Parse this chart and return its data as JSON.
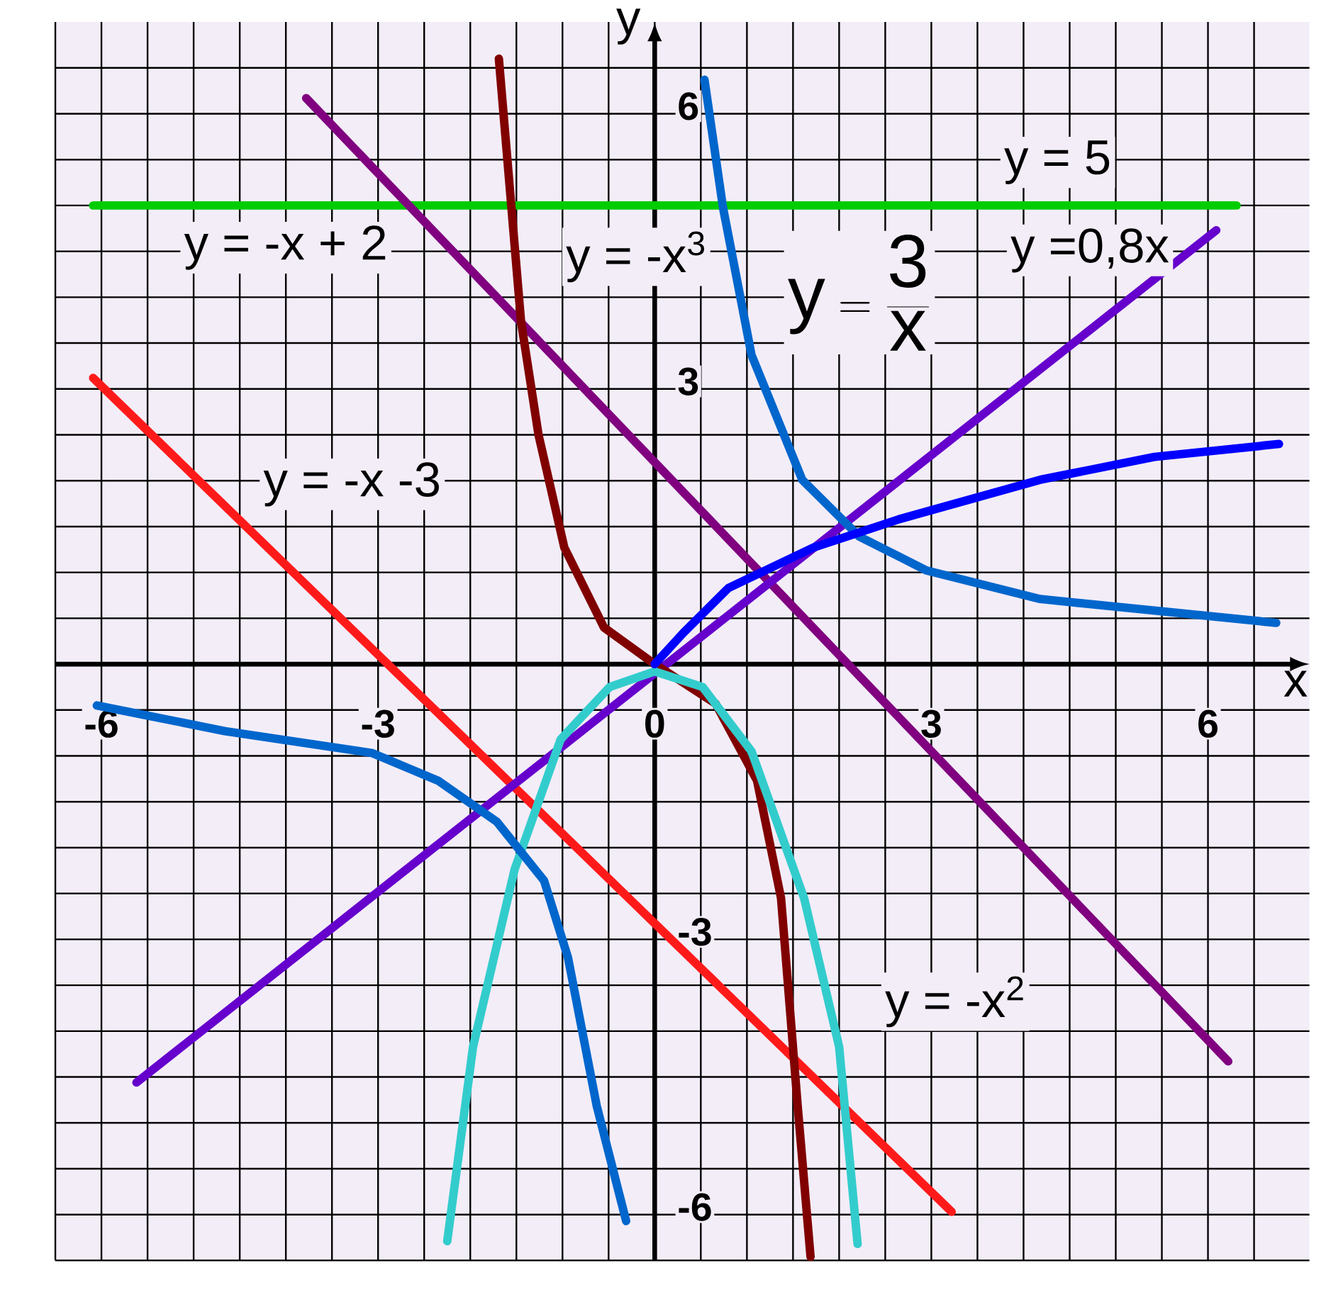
{
  "chart_data": {
    "type": "line",
    "xlabel": "x",
    "ylabel": "y",
    "xlim": [
      -6.5,
      7.1
    ],
    "ylim": [
      -6.5,
      7.0
    ],
    "xticks": [
      {
        "value": -6.5,
        "label": null
      },
      -6,
      {
        "value": -5.5,
        "label": null
      },
      {
        "value": -5,
        "label": null
      },
      {
        "value": -4.5,
        "label": null
      },
      {
        "value": -4,
        "label": null
      },
      {
        "value": -3.5,
        "label": null
      },
      -3,
      {
        "value": -2.5,
        "label": null
      },
      {
        "value": -2,
        "label": null
      },
      {
        "value": -1.5,
        "label": null
      },
      {
        "value": -1,
        "label": null
      },
      {
        "value": -0.5,
        "label": null
      },
      0,
      {
        "value": 0.5,
        "label": null
      },
      {
        "value": 1,
        "label": null
      },
      {
        "value": 1.5,
        "label": null
      },
      {
        "value": 2,
        "label": null
      },
      {
        "value": 2.5,
        "label": null
      },
      3,
      {
        "value": 3.5,
        "label": null
      },
      {
        "value": 4,
        "label": null
      },
      {
        "value": 4.5,
        "label": null
      },
      {
        "value": 5,
        "label": null
      },
      {
        "value": 5.5,
        "label": null
      },
      6,
      {
        "value": 6.5,
        "label": null
      }
    ],
    "yticks": [
      {
        "value": -6.5,
        "label": null
      },
      -6,
      {
        "value": -5.5,
        "label": null
      },
      {
        "value": -5,
        "label": null
      },
      {
        "value": -4.5,
        "label": null
      },
      {
        "value": -4,
        "label": null
      },
      {
        "value": -3.5,
        "label": null
      },
      -3,
      {
        "value": -2.5,
        "label": null
      },
      {
        "value": -2,
        "label": null
      },
      {
        "value": -1.5,
        "label": null
      },
      {
        "value": -1,
        "label": null
      },
      {
        "value": -0.5,
        "label": null
      },
      {
        "value": 0,
        "label": null
      },
      {
        "value": 0.5,
        "label": null
      },
      {
        "value": 1,
        "label": null
      },
      {
        "value": 1.5,
        "label": null
      },
      {
        "value": 2,
        "label": null
      },
      {
        "value": 2.5,
        "label": null
      },
      3,
      {
        "value": 3.5,
        "label": null
      },
      {
        "value": 4,
        "label": null
      },
      {
        "value": 4.5,
        "label": null
      },
      {
        "value": 5,
        "label": null
      },
      {
        "value": 5.5,
        "label": null
      },
      6,
      {
        "value": 6.5,
        "label": null
      }
    ],
    "grid": true,
    "marker": "none",
    "line_style": "solid",
    "series": [
      {
        "color": "#00cc00",
        "x": [
          -6.09,
          6.31
        ],
        "values": [
          5,
          5
        ]
      },
      {
        "color": "#800080",
        "x": [
          -3.78,
          6.22
        ],
        "values": [
          6.17,
          -4.33
        ]
      },
      {
        "color": "#ff1a1a",
        "x": [
          -6.09,
          3.22
        ],
        "values": [
          3.12,
          -5.97
        ]
      },
      {
        "color": "#6600cc",
        "x": [
          -5.62,
          6.09
        ],
        "values": [
          -4.56,
          4.73
        ]
      },
      {
        "color": "#800000",
        "x": [
          -1.69,
          -1.45,
          -1.26,
          -0.98,
          -0.55,
          0,
          0.66,
          1.11,
          1.37,
          1.55,
          1.69
        ],
        "values": [
          6.6,
          3.74,
          2.5,
          1.27,
          0.4,
          0,
          -0.43,
          -1.27,
          -2.55,
          -4.81,
          -6.46
        ]
      },
      {
        "color": "#33cccc",
        "x": [
          -2.25,
          -1.97,
          -1.52,
          -1.02,
          -0.49,
          0,
          0.52,
          1.05,
          1.62,
          2.0,
          2.2
        ],
        "values": [
          -6.29,
          -4.17,
          -2.24,
          -0.82,
          -0.25,
          -0.08,
          -0.25,
          -0.95,
          -2.55,
          -4.17,
          -6.32
        ]
      },
      {
        "color": "#0066cc",
        "x": [
          -6.05,
          -4.66,
          -3.06,
          -2.35,
          -1.71,
          -1.2,
          -0.94,
          -0.63,
          -0.31
        ],
        "values": [
          -0.45,
          -0.73,
          -0.97,
          -1.27,
          -1.72,
          -2.36,
          -3.2,
          -4.81,
          -6.07
        ]
      },
      {
        "color": "#0066cc",
        "x": [
          0.54,
          0.74,
          1.05,
          1.6,
          2.22,
          2.95,
          4.18,
          6.74
        ],
        "values": [
          6.37,
          4.98,
          3.37,
          2.01,
          1.39,
          1.02,
          0.71,
          0.45
        ]
      },
      {
        "color": "#0000ff",
        "x": [
          0,
          0.31,
          0.8,
          1.72,
          2.65,
          4.18,
          5.42,
          6.77
        ],
        "values": [
          0,
          0.34,
          0.83,
          1.27,
          1.58,
          2.01,
          2.26,
          2.4
        ]
      }
    ],
    "annotations": [
      "y = 5",
      "y = -x + 2",
      "y = -x$^{3}$",
      "\\mathsf{y=\\frac{3}{x}}",
      "y =0,8x",
      "y = -x -3",
      "y = -x$^{2}$"
    ]
  }
}
